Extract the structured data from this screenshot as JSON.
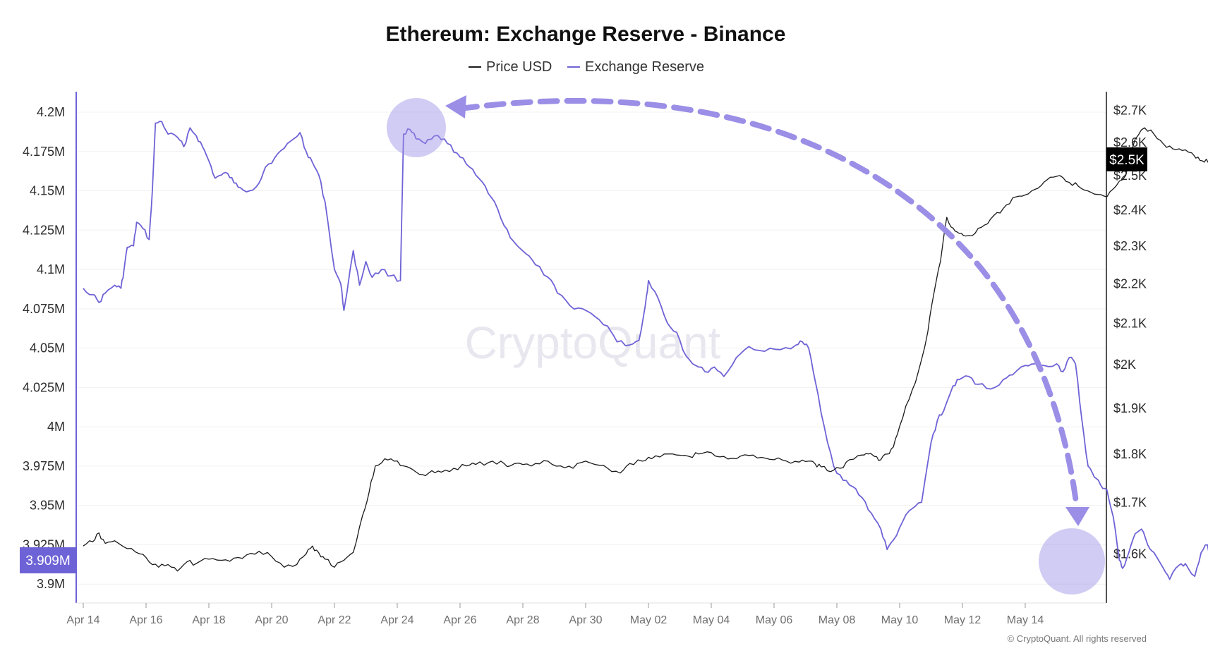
{
  "chart_data": {
    "type": "line",
    "title": "Ethereum: Exchange Reserve - Binance",
    "legend": {
      "placement": "top-center",
      "entries": [
        "Price USD",
        "Exchange Reserve"
      ]
    },
    "watermark": "CryptoQuant",
    "copyright": "© CryptoQuant. All rights reserved",
    "colors": {
      "price": "#1a1a1a",
      "reserve": "#6e63d6",
      "annotation": "#9a8ee6",
      "current_reserve_badge": "#6e63d6",
      "current_price_badge": "#000000"
    },
    "x_axis": {
      "start": "Apr 14",
      "end": "May 15",
      "tick_labels": [
        "Apr 14",
        "Apr 16",
        "Apr 18",
        "Apr 20",
        "Apr 22",
        "Apr 24",
        "Apr 26",
        "Apr 28",
        "Apr 30",
        "May 02",
        "May 04",
        "May 06",
        "May 08",
        "May 10",
        "May 12",
        "May 14"
      ]
    },
    "y_left": {
      "label": "",
      "range": [
        3.888,
        4.213
      ],
      "tick_values": [
        4.2,
        4.175,
        4.15,
        4.125,
        4.1,
        4.075,
        4.05,
        4.025,
        4.0,
        3.975,
        3.95,
        3.925,
        3.9
      ],
      "tick_labels": [
        "4.2M",
        "4.175M",
        "4.15M",
        "4.125M",
        "4.1M",
        "4.075M",
        "4.05M",
        "4.025M",
        "4M",
        "3.975M",
        "3.95M",
        "3.925M",
        "3.9M"
      ],
      "current_value_label": "3.909M",
      "current_value": 3.909
    },
    "y_right": {
      "label": "",
      "scale": "log",
      "range": [
        1510,
        2760
      ],
      "tick_values": [
        2700,
        2600,
        2500,
        2400,
        2300,
        2200,
        2100,
        2000,
        1900,
        1800,
        1700,
        1600
      ],
      "tick_labels": [
        "$2.7K",
        "$2.6K",
        "$2.5K",
        "$2.4K",
        "$2.3K",
        "$2.2K",
        "$2.1K",
        "$2K",
        "$1.9K",
        "$1.8K",
        "$1.7K",
        "$1.6K"
      ],
      "current_value_label": "$2.5K",
      "current_value": 2540
    },
    "series": [
      {
        "name": "Exchange Reserve",
        "axis": "left",
        "points": [
          [
            0,
            4.088
          ],
          [
            0.3,
            4.084
          ],
          [
            0.5,
            4.079
          ],
          [
            0.7,
            4.085
          ],
          [
            1.0,
            4.09
          ],
          [
            1.2,
            4.088
          ],
          [
            1.3,
            4.1
          ],
          [
            1.4,
            4.114
          ],
          [
            1.6,
            4.115
          ],
          [
            1.7,
            4.13
          ],
          [
            1.9,
            4.126
          ],
          [
            2.1,
            4.119
          ],
          [
            2.2,
            4.15
          ],
          [
            2.3,
            4.193
          ],
          [
            2.5,
            4.194
          ],
          [
            2.7,
            4.186
          ],
          [
            3.0,
            4.184
          ],
          [
            3.2,
            4.178
          ],
          [
            3.4,
            4.19
          ],
          [
            3.6,
            4.185
          ],
          [
            3.8,
            4.178
          ],
          [
            4.0,
            4.169
          ],
          [
            4.2,
            4.158
          ],
          [
            4.4,
            4.16
          ],
          [
            4.6,
            4.161
          ],
          [
            4.8,
            4.155
          ],
          [
            5.0,
            4.152
          ],
          [
            5.3,
            4.15
          ],
          [
            5.6,
            4.155
          ],
          [
            5.8,
            4.165
          ],
          [
            6.1,
            4.171
          ],
          [
            6.4,
            4.177
          ],
          [
            6.7,
            4.183
          ],
          [
            6.9,
            4.187
          ],
          [
            7.1,
            4.175
          ],
          [
            7.3,
            4.168
          ],
          [
            7.5,
            4.16
          ],
          [
            7.7,
            4.143
          ],
          [
            8.0,
            4.1
          ],
          [
            8.2,
            4.091
          ],
          [
            8.3,
            4.074
          ],
          [
            8.6,
            4.112
          ],
          [
            8.8,
            4.09
          ],
          [
            9.0,
            4.105
          ],
          [
            9.2,
            4.095
          ],
          [
            9.5,
            4.1
          ],
          [
            9.8,
            4.096
          ],
          [
            10.1,
            4.093
          ],
          [
            10.2,
            4.186
          ],
          [
            10.4,
            4.189
          ],
          [
            10.6,
            4.183
          ],
          [
            10.9,
            4.18
          ],
          [
            11.1,
            4.183
          ],
          [
            11.3,
            4.185
          ],
          [
            11.6,
            4.18
          ],
          [
            11.9,
            4.174
          ],
          [
            12.2,
            4.167
          ],
          [
            12.5,
            4.16
          ],
          [
            12.8,
            4.153
          ],
          [
            13.1,
            4.143
          ],
          [
            13.4,
            4.128
          ],
          [
            13.7,
            4.118
          ],
          [
            14.1,
            4.11
          ],
          [
            14.4,
            4.103
          ],
          [
            14.8,
            4.095
          ],
          [
            15.1,
            4.085
          ],
          [
            15.5,
            4.077
          ],
          [
            15.9,
            4.075
          ],
          [
            16.3,
            4.07
          ],
          [
            16.7,
            4.064
          ],
          [
            17.0,
            4.054
          ],
          [
            17.4,
            4.052
          ],
          [
            17.7,
            4.055
          ],
          [
            17.9,
            4.077
          ],
          [
            18.0,
            4.093
          ],
          [
            18.3,
            4.082
          ],
          [
            18.6,
            4.066
          ],
          [
            18.9,
            4.06
          ],
          [
            19.2,
            4.045
          ],
          [
            19.5,
            4.039
          ],
          [
            19.8,
            4.035
          ],
          [
            20.1,
            4.038
          ],
          [
            20.4,
            4.032
          ],
          [
            20.8,
            4.044
          ],
          [
            21.2,
            4.051
          ],
          [
            21.7,
            4.048
          ],
          [
            22.2,
            4.049
          ],
          [
            22.7,
            4.052
          ],
          [
            22.9,
            4.054
          ],
          [
            23.1,
            4.05
          ],
          [
            23.3,
            4.03
          ],
          [
            23.6,
            4.0
          ],
          [
            23.9,
            3.975
          ],
          [
            24.2,
            3.966
          ],
          [
            24.5,
            3.962
          ],
          [
            24.8,
            3.955
          ],
          [
            25.1,
            3.945
          ],
          [
            25.4,
            3.935
          ],
          [
            25.6,
            3.922
          ],
          [
            25.8,
            3.928
          ],
          [
            26.1,
            3.94
          ],
          [
            26.4,
            3.948
          ],
          [
            26.7,
            3.952
          ],
          [
            27.0,
            3.99
          ],
          [
            27.2,
            4.004
          ],
          [
            27.4,
            4.01
          ],
          [
            27.7,
            4.026
          ],
          [
            27.9,
            4.03
          ],
          [
            28.2,
            4.032
          ],
          [
            28.5,
            4.027
          ],
          [
            28.9,
            4.024
          ],
          [
            29.3,
            4.03
          ],
          [
            29.6,
            4.033
          ],
          [
            30.0,
            4.039
          ],
          [
            30.3,
            4.04
          ],
          [
            30.6,
            4.039
          ],
          [
            31.0,
            4.04
          ],
          [
            31.2,
            4.035
          ],
          [
            31.4,
            4.044
          ],
          [
            31.6,
            4.04
          ],
          [
            31.8,
            4.005
          ],
          [
            32.0,
            3.975
          ],
          [
            32.2,
            3.968
          ],
          [
            32.4,
            3.963
          ],
          [
            32.6,
            3.96
          ],
          [
            32.8,
            3.943
          ],
          [
            33.0,
            3.915
          ],
          [
            33.1,
            3.91
          ],
          [
            33.3,
            3.92
          ],
          [
            33.5,
            3.932
          ],
          [
            33.7,
            3.935
          ],
          [
            33.9,
            3.925
          ],
          [
            34.1,
            3.92
          ],
          [
            34.4,
            3.91
          ],
          [
            34.6,
            3.903
          ],
          [
            34.9,
            3.912
          ],
          [
            35.1,
            3.913
          ],
          [
            35.4,
            3.905
          ],
          [
            35.6,
            3.92
          ],
          [
            35.8,
            3.925
          ],
          [
            36.0,
            3.908
          ]
        ]
      },
      {
        "name": "Price USD",
        "axis": "right",
        "points": [
          [
            0,
            1615
          ],
          [
            0.3,
            1623
          ],
          [
            0.5,
            1640
          ],
          [
            0.7,
            1620
          ],
          [
            1.0,
            1625
          ],
          [
            1.4,
            1610
          ],
          [
            1.8,
            1600
          ],
          [
            2.1,
            1585
          ],
          [
            2.4,
            1575
          ],
          [
            2.7,
            1580
          ],
          [
            3.0,
            1568
          ],
          [
            3.3,
            1585
          ],
          [
            3.6,
            1582
          ],
          [
            4.0,
            1590
          ],
          [
            4.4,
            1588
          ],
          [
            4.8,
            1592
          ],
          [
            5.2,
            1598
          ],
          [
            5.6,
            1605
          ],
          [
            6.0,
            1595
          ],
          [
            6.4,
            1575
          ],
          [
            6.8,
            1580
          ],
          [
            7.1,
            1600
          ],
          [
            7.3,
            1615
          ],
          [
            7.5,
            1602
          ],
          [
            7.7,
            1590
          ],
          [
            8.0,
            1575
          ],
          [
            8.3,
            1588
          ],
          [
            8.6,
            1603
          ],
          [
            8.9,
            1675
          ],
          [
            9.1,
            1720
          ],
          [
            9.3,
            1775
          ],
          [
            9.6,
            1790
          ],
          [
            9.9,
            1785
          ],
          [
            10.2,
            1775
          ],
          [
            10.5,
            1767
          ],
          [
            10.8,
            1757
          ],
          [
            11.1,
            1765
          ],
          [
            11.4,
            1762
          ],
          [
            11.8,
            1770
          ],
          [
            12.2,
            1775
          ],
          [
            12.5,
            1778
          ],
          [
            12.9,
            1782
          ],
          [
            13.3,
            1785
          ],
          [
            13.6,
            1775
          ],
          [
            14.0,
            1778
          ],
          [
            14.4,
            1780
          ],
          [
            14.8,
            1785
          ],
          [
            15.2,
            1775
          ],
          [
            15.6,
            1770
          ],
          [
            16.0,
            1785
          ],
          [
            16.3,
            1778
          ],
          [
            16.7,
            1770
          ],
          [
            17.1,
            1760
          ],
          [
            17.4,
            1780
          ],
          [
            17.8,
            1785
          ],
          [
            18.1,
            1790
          ],
          [
            18.5,
            1800
          ],
          [
            18.9,
            1798
          ],
          [
            19.3,
            1795
          ],
          [
            19.6,
            1800
          ],
          [
            20.0,
            1803
          ],
          [
            20.4,
            1795
          ],
          [
            20.8,
            1790
          ],
          [
            21.2,
            1797
          ],
          [
            21.6,
            1793
          ],
          [
            22.0,
            1788
          ],
          [
            22.4,
            1785
          ],
          [
            22.8,
            1783
          ],
          [
            23.1,
            1785
          ],
          [
            23.3,
            1780
          ],
          [
            23.5,
            1773
          ],
          [
            23.8,
            1763
          ],
          [
            24.1,
            1770
          ],
          [
            24.4,
            1788
          ],
          [
            24.8,
            1798
          ],
          [
            25.0,
            1800
          ],
          [
            25.2,
            1795
          ],
          [
            25.4,
            1788
          ],
          [
            25.6,
            1800
          ],
          [
            25.8,
            1815
          ],
          [
            26.0,
            1860
          ],
          [
            26.3,
            1920
          ],
          [
            26.6,
            1985
          ],
          [
            26.9,
            2080
          ],
          [
            27.1,
            2180
          ],
          [
            27.3,
            2260
          ],
          [
            27.5,
            2380
          ],
          [
            27.7,
            2350
          ],
          [
            27.9,
            2335
          ],
          [
            28.1,
            2328
          ],
          [
            28.4,
            2335
          ],
          [
            28.7,
            2358
          ],
          [
            29.0,
            2385
          ],
          [
            29.3,
            2405
          ],
          [
            29.6,
            2435
          ],
          [
            29.9,
            2440
          ],
          [
            30.2,
            2455
          ],
          [
            30.5,
            2470
          ],
          [
            30.8,
            2495
          ],
          [
            31.1,
            2500
          ],
          [
            31.4,
            2480
          ],
          [
            31.7,
            2468
          ],
          [
            32.0,
            2455
          ],
          [
            32.3,
            2445
          ],
          [
            32.6,
            2438
          ],
          [
            32.9,
            2470
          ],
          [
            33.2,
            2500
          ],
          [
            33.5,
            2610
          ],
          [
            33.8,
            2645
          ],
          [
            34.1,
            2625
          ],
          [
            34.4,
            2595
          ],
          [
            34.7,
            2580
          ],
          [
            35.0,
            2575
          ],
          [
            35.3,
            2568
          ],
          [
            35.5,
            2555
          ],
          [
            35.7,
            2540
          ],
          [
            35.9,
            2545
          ],
          [
            36.0,
            2542
          ]
        ]
      }
    ]
  }
}
